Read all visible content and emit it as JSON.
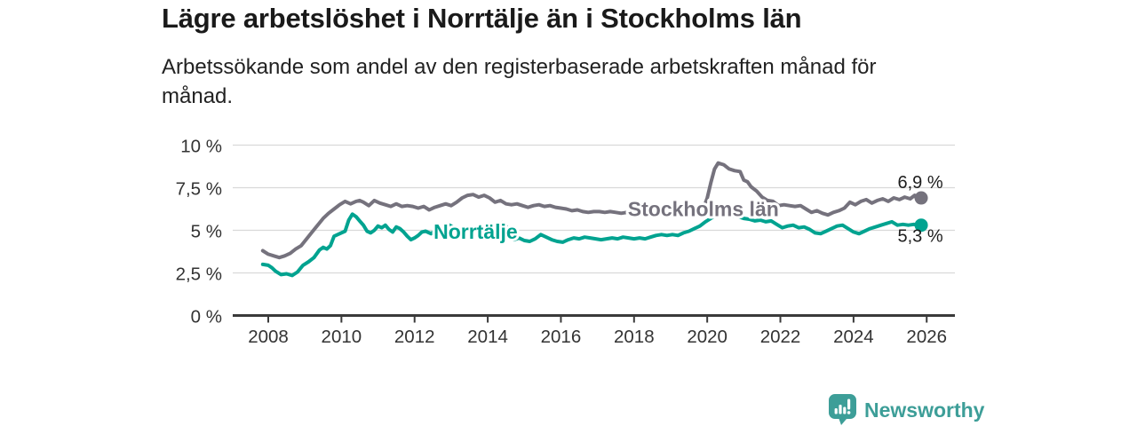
{
  "header": {
    "title": "Lägre arbetslöshet i Norrtälje än i Stockholms län",
    "subtitle": "Arbetssökande som andel av den registerbaserade arbetskraften månad för månad."
  },
  "footer": {
    "brand": "Newsworthy",
    "logo_icon": "bar-chart-speech-bubble-icon"
  },
  "colors": {
    "grid": "#d9d9d9",
    "axis": "#3a3a3a",
    "tick_label": "#333333",
    "value_label": "#1d1d1d",
    "halo": "#ffffff",
    "brand": "#3d9e98"
  },
  "chart_data": {
    "type": "line",
    "title": "Lägre arbetslöshet i Norrtälje än i Stockholms län",
    "subtitle": "Arbetssökande som andel av den registerbaserade arbetskraften månad för månad.",
    "unit": "%",
    "grid": true,
    "legend_position": "inline-labels",
    "x_axis": {
      "ticks": [
        2008,
        2010,
        2012,
        2014,
        2016,
        2018,
        2020,
        2022,
        2024,
        2026
      ],
      "range": [
        2007.0,
        2026.8
      ]
    },
    "y_axis": {
      "range": [
        0,
        10
      ],
      "ticks": [
        {
          "value": 0,
          "label": "0 %"
        },
        {
          "value": 2.5,
          "label": "2,5 %"
        },
        {
          "value": 5,
          "label": "5 %"
        },
        {
          "value": 7.5,
          "label": "7,5 %"
        },
        {
          "value": 10,
          "label": "10 %"
        }
      ]
    },
    "series": [
      {
        "name": "Stockholms län",
        "color": "#75727d",
        "end_label": "6,9 %",
        "end_value": 6.9,
        "end_label_side": "above",
        "inline_label": {
          "year": 2017.83,
          "value": 5.84
        },
        "points": [
          [
            2007.85,
            3.8
          ],
          [
            2008.0,
            3.6
          ],
          [
            2008.15,
            3.5
          ],
          [
            2008.3,
            3.4
          ],
          [
            2008.45,
            3.5
          ],
          [
            2008.6,
            3.65
          ],
          [
            2008.75,
            3.9
          ],
          [
            2008.9,
            4.1
          ],
          [
            2009.05,
            4.5
          ],
          [
            2009.2,
            4.9
          ],
          [
            2009.35,
            5.3
          ],
          [
            2009.5,
            5.7
          ],
          [
            2009.65,
            6.0
          ],
          [
            2009.8,
            6.25
          ],
          [
            2009.95,
            6.5
          ],
          [
            2010.1,
            6.7
          ],
          [
            2010.25,
            6.55
          ],
          [
            2010.4,
            6.7
          ],
          [
            2010.5,
            6.75
          ],
          [
            2010.6,
            6.65
          ],
          [
            2010.75,
            6.45
          ],
          [
            2010.9,
            6.75
          ],
          [
            2011.05,
            6.6
          ],
          [
            2011.2,
            6.5
          ],
          [
            2011.35,
            6.4
          ],
          [
            2011.5,
            6.55
          ],
          [
            2011.65,
            6.4
          ],
          [
            2011.8,
            6.45
          ],
          [
            2011.95,
            6.4
          ],
          [
            2012.1,
            6.3
          ],
          [
            2012.25,
            6.4
          ],
          [
            2012.4,
            6.2
          ],
          [
            2012.55,
            6.35
          ],
          [
            2012.7,
            6.45
          ],
          [
            2012.85,
            6.55
          ],
          [
            2013.0,
            6.45
          ],
          [
            2013.15,
            6.65
          ],
          [
            2013.3,
            6.9
          ],
          [
            2013.45,
            7.05
          ],
          [
            2013.6,
            7.1
          ],
          [
            2013.75,
            6.95
          ],
          [
            2013.9,
            7.05
          ],
          [
            2014.05,
            6.9
          ],
          [
            2014.2,
            6.65
          ],
          [
            2014.35,
            6.75
          ],
          [
            2014.5,
            6.55
          ],
          [
            2014.65,
            6.5
          ],
          [
            2014.8,
            6.55
          ],
          [
            2014.95,
            6.45
          ],
          [
            2015.1,
            6.35
          ],
          [
            2015.25,
            6.45
          ],
          [
            2015.4,
            6.5
          ],
          [
            2015.55,
            6.4
          ],
          [
            2015.7,
            6.45
          ],
          [
            2015.85,
            6.35
          ],
          [
            2016.0,
            6.3
          ],
          [
            2016.15,
            6.25
          ],
          [
            2016.3,
            6.15
          ],
          [
            2016.45,
            6.2
          ],
          [
            2016.6,
            6.1
          ],
          [
            2016.75,
            6.05
          ],
          [
            2016.9,
            6.1
          ],
          [
            2017.05,
            6.1
          ],
          [
            2017.2,
            6.05
          ],
          [
            2017.35,
            6.1
          ],
          [
            2017.5,
            6.05
          ],
          [
            2017.65,
            6.0
          ],
          [
            2017.8,
            6.05
          ],
          [
            2017.95,
            6.0
          ],
          [
            2018.1,
            5.95
          ],
          [
            2018.25,
            6.05
          ],
          [
            2018.4,
            6.0
          ],
          [
            2018.55,
            6.05
          ],
          [
            2018.7,
            6.0
          ],
          [
            2018.85,
            6.05
          ],
          [
            2019.0,
            6.0
          ],
          [
            2019.15,
            6.05
          ],
          [
            2019.3,
            6.1
          ],
          [
            2019.45,
            6.1
          ],
          [
            2019.6,
            6.1
          ],
          [
            2019.75,
            6.15
          ],
          [
            2019.9,
            6.3
          ],
          [
            2020.0,
            6.9
          ],
          [
            2020.1,
            7.8
          ],
          [
            2020.2,
            8.6
          ],
          [
            2020.3,
            8.95
          ],
          [
            2020.45,
            8.85
          ],
          [
            2020.6,
            8.6
          ],
          [
            2020.75,
            8.5
          ],
          [
            2020.9,
            8.45
          ],
          [
            2021.0,
            7.95
          ],
          [
            2021.1,
            7.85
          ],
          [
            2021.2,
            7.55
          ],
          [
            2021.35,
            7.3
          ],
          [
            2021.5,
            6.95
          ],
          [
            2021.65,
            6.75
          ],
          [
            2021.8,
            6.7
          ],
          [
            2021.95,
            6.45
          ],
          [
            2022.1,
            6.5
          ],
          [
            2022.25,
            6.45
          ],
          [
            2022.4,
            6.4
          ],
          [
            2022.55,
            6.45
          ],
          [
            2022.7,
            6.25
          ],
          [
            2022.85,
            6.05
          ],
          [
            2023.0,
            6.15
          ],
          [
            2023.15,
            6.0
          ],
          [
            2023.3,
            5.9
          ],
          [
            2023.45,
            6.05
          ],
          [
            2023.6,
            6.15
          ],
          [
            2023.75,
            6.3
          ],
          [
            2023.9,
            6.65
          ],
          [
            2024.05,
            6.5
          ],
          [
            2024.2,
            6.7
          ],
          [
            2024.35,
            6.8
          ],
          [
            2024.5,
            6.6
          ],
          [
            2024.65,
            6.75
          ],
          [
            2024.8,
            6.85
          ],
          [
            2024.95,
            6.7
          ],
          [
            2025.1,
            6.9
          ],
          [
            2025.25,
            6.8
          ],
          [
            2025.4,
            6.95
          ],
          [
            2025.55,
            6.85
          ],
          [
            2025.67,
            7.05
          ],
          [
            2025.76,
            6.75
          ],
          [
            2025.85,
            6.9
          ]
        ]
      },
      {
        "name": "Norrtälje",
        "color": "#00a390",
        "end_label": "5,3 %",
        "end_value": 5.3,
        "end_label_side": "below",
        "inline_label": {
          "year": 2012.52,
          "value": 4.51
        },
        "points": [
          [
            2007.85,
            3.0
          ],
          [
            2008.0,
            2.95
          ],
          [
            2008.1,
            2.8
          ],
          [
            2008.2,
            2.6
          ],
          [
            2008.35,
            2.4
          ],
          [
            2008.5,
            2.45
          ],
          [
            2008.65,
            2.35
          ],
          [
            2008.8,
            2.55
          ],
          [
            2008.95,
            2.95
          ],
          [
            2009.1,
            3.15
          ],
          [
            2009.25,
            3.4
          ],
          [
            2009.4,
            3.85
          ],
          [
            2009.5,
            4.0
          ],
          [
            2009.6,
            3.9
          ],
          [
            2009.7,
            4.1
          ],
          [
            2009.8,
            4.65
          ],
          [
            2009.95,
            4.8
          ],
          [
            2010.1,
            4.95
          ],
          [
            2010.2,
            5.6
          ],
          [
            2010.3,
            5.95
          ],
          [
            2010.4,
            5.8
          ],
          [
            2010.5,
            5.55
          ],
          [
            2010.6,
            5.3
          ],
          [
            2010.7,
            4.95
          ],
          [
            2010.8,
            4.85
          ],
          [
            2010.9,
            5.0
          ],
          [
            2011.0,
            5.25
          ],
          [
            2011.1,
            5.15
          ],
          [
            2011.2,
            5.3
          ],
          [
            2011.3,
            5.05
          ],
          [
            2011.4,
            4.9
          ],
          [
            2011.5,
            5.2
          ],
          [
            2011.6,
            5.1
          ],
          [
            2011.7,
            4.9
          ],
          [
            2011.8,
            4.65
          ],
          [
            2011.9,
            4.45
          ],
          [
            2012.0,
            4.55
          ],
          [
            2012.1,
            4.7
          ],
          [
            2012.2,
            4.9
          ],
          [
            2012.3,
            4.95
          ],
          [
            2012.45,
            4.8
          ],
          [
            2012.6,
            5.05
          ],
          [
            2012.75,
            5.15
          ],
          [
            2012.9,
            5.35
          ],
          [
            2013.05,
            5.2
          ],
          [
            2013.2,
            5.0
          ],
          [
            2013.35,
            4.9
          ],
          [
            2013.5,
            5.0
          ],
          [
            2013.65,
            4.85
          ],
          [
            2013.8,
            4.7
          ],
          [
            2013.95,
            4.85
          ],
          [
            2014.1,
            5.05
          ],
          [
            2014.25,
            5.25
          ],
          [
            2014.4,
            5.45
          ],
          [
            2014.5,
            5.25
          ],
          [
            2014.6,
            4.55
          ],
          [
            2014.72,
            4.45
          ],
          [
            2014.85,
            4.55
          ],
          [
            2015.0,
            4.4
          ],
          [
            2015.15,
            4.35
          ],
          [
            2015.3,
            4.5
          ],
          [
            2015.45,
            4.75
          ],
          [
            2015.6,
            4.6
          ],
          [
            2015.75,
            4.45
          ],
          [
            2015.9,
            4.35
          ],
          [
            2016.05,
            4.3
          ],
          [
            2016.2,
            4.45
          ],
          [
            2016.35,
            4.55
          ],
          [
            2016.5,
            4.5
          ],
          [
            2016.65,
            4.6
          ],
          [
            2016.8,
            4.55
          ],
          [
            2016.95,
            4.5
          ],
          [
            2017.1,
            4.45
          ],
          [
            2017.25,
            4.5
          ],
          [
            2017.4,
            4.55
          ],
          [
            2017.55,
            4.5
          ],
          [
            2017.7,
            4.6
          ],
          [
            2017.85,
            4.55
          ],
          [
            2018.0,
            4.5
          ],
          [
            2018.15,
            4.55
          ],
          [
            2018.3,
            4.5
          ],
          [
            2018.45,
            4.6
          ],
          [
            2018.6,
            4.7
          ],
          [
            2018.75,
            4.75
          ],
          [
            2018.9,
            4.7
          ],
          [
            2019.05,
            4.75
          ],
          [
            2019.2,
            4.7
          ],
          [
            2019.35,
            4.85
          ],
          [
            2019.5,
            4.95
          ],
          [
            2019.65,
            5.1
          ],
          [
            2019.8,
            5.25
          ],
          [
            2019.95,
            5.5
          ],
          [
            2020.1,
            5.7
          ],
          [
            2020.25,
            5.9
          ],
          [
            2020.4,
            6.0
          ],
          [
            2020.55,
            5.95
          ],
          [
            2020.7,
            5.85
          ],
          [
            2020.85,
            5.8
          ],
          [
            2021.0,
            5.7
          ],
          [
            2021.15,
            5.65
          ],
          [
            2021.3,
            5.55
          ],
          [
            2021.45,
            5.6
          ],
          [
            2021.6,
            5.5
          ],
          [
            2021.75,
            5.55
          ],
          [
            2021.9,
            5.35
          ],
          [
            2022.05,
            5.15
          ],
          [
            2022.2,
            5.25
          ],
          [
            2022.35,
            5.3
          ],
          [
            2022.5,
            5.15
          ],
          [
            2022.65,
            5.2
          ],
          [
            2022.8,
            5.05
          ],
          [
            2022.95,
            4.85
          ],
          [
            2023.1,
            4.8
          ],
          [
            2023.25,
            4.95
          ],
          [
            2023.4,
            5.1
          ],
          [
            2023.55,
            5.25
          ],
          [
            2023.7,
            5.3
          ],
          [
            2023.85,
            5.1
          ],
          [
            2024.0,
            4.9
          ],
          [
            2024.15,
            4.8
          ],
          [
            2024.3,
            4.95
          ],
          [
            2024.45,
            5.1
          ],
          [
            2024.6,
            5.2
          ],
          [
            2024.75,
            5.3
          ],
          [
            2024.9,
            5.4
          ],
          [
            2025.05,
            5.5
          ],
          [
            2025.2,
            5.3
          ],
          [
            2025.35,
            5.35
          ],
          [
            2025.5,
            5.3
          ],
          [
            2025.65,
            5.35
          ],
          [
            2025.75,
            5.3
          ],
          [
            2025.85,
            5.3
          ]
        ]
      }
    ]
  }
}
